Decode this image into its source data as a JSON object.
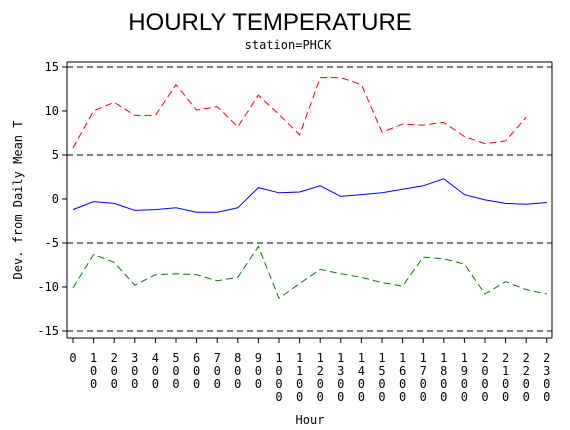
{
  "chart_data": {
    "type": "line",
    "title": "HOURLY TEMPERATURE",
    "subtitle": "station=PHCK",
    "xlabel": "Hour",
    "ylabel": "Dev. from Daily Mean T",
    "ylim": [
      -15,
      15
    ],
    "yticks": [
      -15,
      -10,
      -5,
      0,
      5,
      10,
      15
    ],
    "categories": [
      "0",
      "100",
      "200",
      "300",
      "400",
      "500",
      "600",
      "700",
      "800",
      "900",
      "1000",
      "1100",
      "1200",
      "1300",
      "1400",
      "1500",
      "1600",
      "1700",
      "1800",
      "1900",
      "2000",
      "2100",
      "2200",
      "2300"
    ],
    "reference_lines": [
      -15,
      -5,
      5,
      15
    ],
    "series": [
      {
        "color": "#ff0000",
        "dash": "dashed",
        "values": [
          5.8,
          10.0,
          11.0,
          9.5,
          9.5,
          13.0,
          10.1,
          10.5,
          8.2,
          11.8,
          9.6,
          7.3,
          13.8,
          13.8,
          13.0,
          7.6,
          8.5,
          8.4,
          8.7,
          7.1,
          6.3,
          6.6,
          9.3,
          null
        ]
      },
      {
        "color": "#0000ff",
        "dash": "solid",
        "values": [
          -1.2,
          -0.3,
          -0.5,
          -1.3,
          -1.2,
          -1.0,
          -1.5,
          -1.5,
          -1.0,
          1.3,
          0.7,
          0.8,
          1.5,
          0.3,
          0.5,
          0.7,
          1.1,
          1.5,
          2.3,
          0.5,
          -0.1,
          -0.5,
          -0.6,
          -0.4
        ]
      },
      {
        "color": "#008000",
        "dash": "dashed",
        "values": [
          -10.1,
          -6.3,
          -7.2,
          -9.8,
          -8.6,
          -8.5,
          -8.6,
          -9.3,
          -8.9,
          -5.4,
          -11.3,
          -9.6,
          -8.0,
          -8.5,
          -8.9,
          -9.5,
          -9.9,
          -6.6,
          -6.8,
          -7.4,
          -10.8,
          -9.4,
          -10.3,
          -10.8
        ]
      }
    ]
  }
}
